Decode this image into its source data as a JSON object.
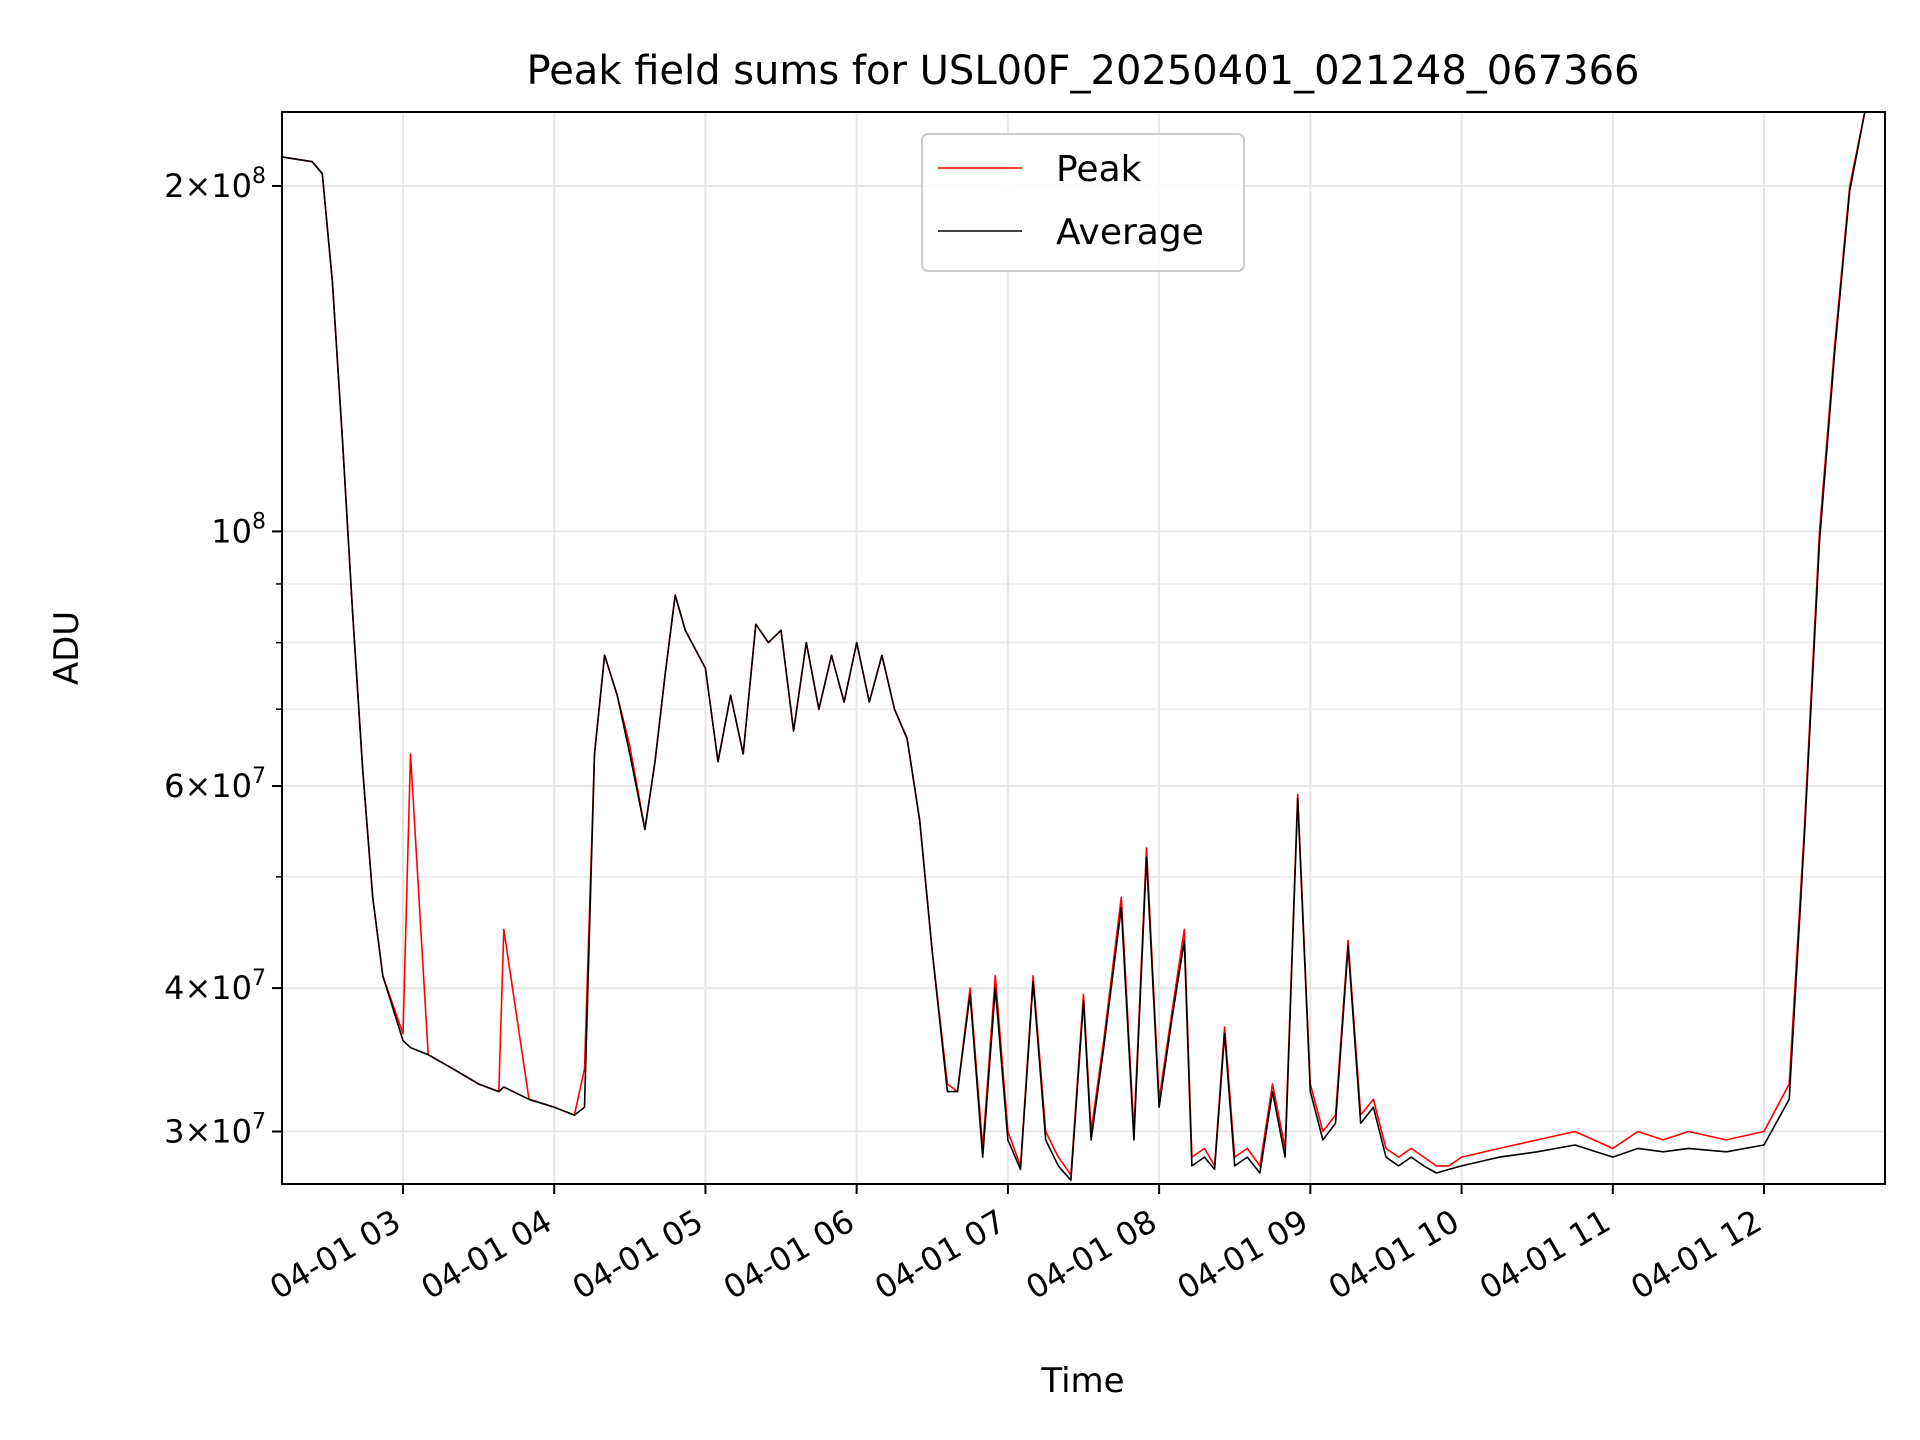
{
  "chart_data": {
    "type": "line",
    "title": "Peak field sums for USL00F_20250401_021248_067366",
    "xlabel": "Time",
    "ylabel": "ADU",
    "yscale": "log",
    "grid": true,
    "legend_position": "top-center",
    "xlim": [
      "2025-04-01 02:12",
      "2025-04-01 12:48"
    ],
    "ylim": [
      27000000,
      232000000
    ],
    "x_ticks": [
      {
        "value": "2025-04-01 03:00",
        "label": "04-01 03"
      },
      {
        "value": "2025-04-01 04:00",
        "label": "04-01 04"
      },
      {
        "value": "2025-04-01 05:00",
        "label": "04-01 05"
      },
      {
        "value": "2025-04-01 06:00",
        "label": "04-01 06"
      },
      {
        "value": "2025-04-01 07:00",
        "label": "04-01 07"
      },
      {
        "value": "2025-04-01 08:00",
        "label": "04-01 08"
      },
      {
        "value": "2025-04-01 09:00",
        "label": "04-01 09"
      },
      {
        "value": "2025-04-01 10:00",
        "label": "04-01 10"
      },
      {
        "value": "2025-04-01 11:00",
        "label": "04-01 11"
      },
      {
        "value": "2025-04-01 12:00",
        "label": "04-01 12"
      }
    ],
    "y_ticks": [
      {
        "value": 30000000,
        "mantissa": "3",
        "exp": "7"
      },
      {
        "value": 40000000,
        "mantissa": "4",
        "exp": "7"
      },
      {
        "value": 60000000,
        "mantissa": "6",
        "exp": "7"
      },
      {
        "value": 100000000,
        "mantissa": "",
        "exp": "8"
      },
      {
        "value": 200000000,
        "mantissa": "2",
        "exp": "8"
      }
    ],
    "y_minor_ticks": [
      50000000,
      70000000,
      80000000,
      90000000
    ],
    "x": [
      "2025-04-01 02:12",
      "2025-04-01 02:24",
      "2025-04-01 02:28",
      "2025-04-01 02:32",
      "2025-04-01 02:36",
      "2025-04-01 02:40",
      "2025-04-01 02:44",
      "2025-04-01 02:48",
      "2025-04-01 02:52",
      "2025-04-01 03:00",
      "2025-04-01 03:03",
      "2025-04-01 03:10",
      "2025-04-01 03:20",
      "2025-04-01 03:30",
      "2025-04-01 03:38",
      "2025-04-01 03:40",
      "2025-04-01 03:50",
      "2025-04-01 04:00",
      "2025-04-01 04:08",
      "2025-04-01 04:12",
      "2025-04-01 04:16",
      "2025-04-01 04:20",
      "2025-04-01 04:25",
      "2025-04-01 04:30",
      "2025-04-01 04:36",
      "2025-04-01 04:40",
      "2025-04-01 04:44",
      "2025-04-01 04:48",
      "2025-04-01 04:52",
      "2025-04-01 05:00",
      "2025-04-01 05:05",
      "2025-04-01 05:10",
      "2025-04-01 05:15",
      "2025-04-01 05:20",
      "2025-04-01 05:25",
      "2025-04-01 05:30",
      "2025-04-01 05:35",
      "2025-04-01 05:40",
      "2025-04-01 05:45",
      "2025-04-01 05:50",
      "2025-04-01 05:55",
      "2025-04-01 06:00",
      "2025-04-01 06:05",
      "2025-04-01 06:10",
      "2025-04-01 06:15",
      "2025-04-01 06:20",
      "2025-04-01 06:25",
      "2025-04-01 06:30",
      "2025-04-01 06:36",
      "2025-04-01 06:40",
      "2025-04-01 06:45",
      "2025-04-01 06:50",
      "2025-04-01 06:55",
      "2025-04-01 07:00",
      "2025-04-01 07:05",
      "2025-04-01 07:10",
      "2025-04-01 07:15",
      "2025-04-01 07:20",
      "2025-04-01 07:25",
      "2025-04-01 07:30",
      "2025-04-01 07:33",
      "2025-04-01 07:38",
      "2025-04-01 07:45",
      "2025-04-01 07:50",
      "2025-04-01 07:55",
      "2025-04-01 08:00",
      "2025-04-01 08:05",
      "2025-04-01 08:10",
      "2025-04-01 08:13",
      "2025-04-01 08:18",
      "2025-04-01 08:22",
      "2025-04-01 08:26",
      "2025-04-01 08:30",
      "2025-04-01 08:35",
      "2025-04-01 08:40",
      "2025-04-01 08:45",
      "2025-04-01 08:50",
      "2025-04-01 08:55",
      "2025-04-01 09:00",
      "2025-04-01 09:05",
      "2025-04-01 09:10",
      "2025-04-01 09:15",
      "2025-04-01 09:20",
      "2025-04-01 09:25",
      "2025-04-01 09:30",
      "2025-04-01 09:35",
      "2025-04-01 09:40",
      "2025-04-01 09:45",
      "2025-04-01 09:50",
      "2025-04-01 09:55",
      "2025-04-01 10:00",
      "2025-04-01 10:15",
      "2025-04-01 10:30",
      "2025-04-01 10:45",
      "2025-04-01 11:00",
      "2025-04-01 11:10",
      "2025-04-01 11:20",
      "2025-04-01 11:30",
      "2025-04-01 11:45",
      "2025-04-01 12:00",
      "2025-04-01 12:10",
      "2025-04-01 12:16",
      "2025-04-01 12:22",
      "2025-04-01 12:28",
      "2025-04-01 12:34",
      "2025-04-01 12:40"
    ],
    "series": [
      {
        "name": "Peak",
        "color": "#ff0000",
        "values": [
          212000000,
          210000000,
          205000000,
          165000000,
          120000000,
          85000000,
          62000000,
          48000000,
          41000000,
          36500000,
          64000000,
          35000000,
          34000000,
          33000000,
          32500000,
          45000000,
          32000000,
          31500000,
          31000000,
          34000000,
          64000000,
          78000000,
          72000000,
          65000000,
          55000000,
          63000000,
          75000000,
          88000000,
          82000000,
          76000000,
          63000000,
          72000000,
          64000000,
          83000000,
          80000000,
          82000000,
          67000000,
          80000000,
          70000000,
          78000000,
          71000000,
          80000000,
          71000000,
          78000000,
          70000000,
          66000000,
          56000000,
          43000000,
          33000000,
          32500000,
          40000000,
          29000000,
          41000000,
          30000000,
          28000000,
          41000000,
          30000000,
          28500000,
          27500000,
          39500000,
          30000000,
          36000000,
          48000000,
          30000000,
          53000000,
          32000000,
          38000000,
          45000000,
          28500000,
          29000000,
          28000000,
          37000000,
          28500000,
          29000000,
          28000000,
          33000000,
          29000000,
          59000000,
          33000000,
          30000000,
          31000000,
          44000000,
          31000000,
          32000000,
          29000000,
          28500000,
          29000000,
          28500000,
          28000000,
          28000000,
          28500000,
          29000000,
          29500000,
          30000000,
          29000000,
          30000000,
          29500000,
          30000000,
          29500000,
          30000000,
          33000000,
          55000000,
          100000000,
          145000000,
          200000000,
          232000000
        ]
      },
      {
        "name": "Average",
        "color": "#000000",
        "values": [
          212000000,
          210000000,
          205000000,
          165000000,
          120000000,
          85000000,
          62000000,
          48000000,
          41000000,
          36000000,
          35500000,
          35000000,
          34000000,
          33000000,
          32500000,
          32800000,
          32000000,
          31500000,
          31000000,
          31500000,
          64000000,
          78000000,
          72000000,
          64000000,
          55000000,
          63000000,
          75000000,
          88000000,
          82000000,
          76000000,
          63000000,
          72000000,
          64000000,
          83000000,
          80000000,
          82000000,
          67000000,
          80000000,
          70000000,
          78000000,
          71000000,
          80000000,
          71000000,
          78000000,
          70000000,
          66000000,
          56000000,
          43000000,
          32500000,
          32500000,
          39500000,
          28500000,
          40000000,
          29500000,
          27800000,
          40500000,
          29500000,
          28000000,
          27200000,
          39000000,
          29500000,
          35500000,
          47000000,
          29500000,
          52000000,
          31500000,
          37500000,
          44000000,
          28000000,
          28500000,
          27800000,
          36500000,
          28000000,
          28500000,
          27600000,
          32500000,
          28500000,
          58500000,
          32500000,
          29500000,
          30500000,
          43500000,
          30500000,
          31500000,
          28500000,
          28000000,
          28500000,
          28000000,
          27600000,
          27800000,
          28000000,
          28500000,
          28800000,
          29200000,
          28500000,
          29000000,
          28800000,
          29000000,
          28800000,
          29200000,
          32000000,
          54000000,
          98000000,
          143000000,
          198000000,
          232000000
        ]
      }
    ]
  }
}
